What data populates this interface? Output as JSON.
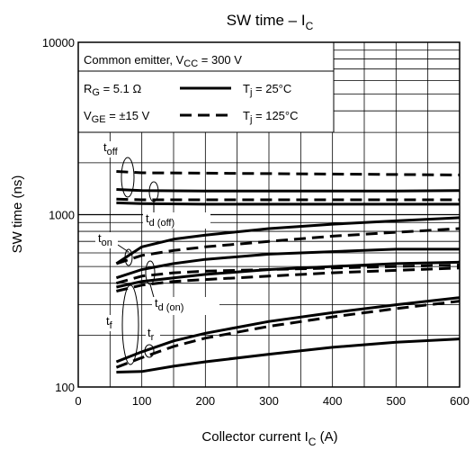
{
  "chart_data": {
    "type": "line",
    "title": {
      "main": "SW time – I",
      "sub": "C"
    },
    "xlabel": {
      "main": "Collector current   I",
      "sub": "C",
      "unit": "   (A)"
    },
    "ylabel": "SW time    (ns)",
    "xlim": [
      0,
      600
    ],
    "ylim": [
      100,
      10000
    ],
    "yscale": "log",
    "grid": true,
    "x_ticks": [
      "0",
      "100",
      "200",
      "300",
      "400",
      "500",
      "600"
    ],
    "y_ticks": [
      "100",
      "1000",
      "10000"
    ],
    "legend": {
      "placement": "top-left",
      "condition": {
        "main": "Common emitter, V",
        "sub": "CC",
        "rest": " = 300 V"
      },
      "rg": {
        "main": "R",
        "sub": "G",
        "rest": " = 5.1 Ω"
      },
      "vge": {
        "main": "V",
        "sub": "GE",
        "rest": " = ±15 V"
      },
      "solid": {
        "main": "T",
        "sub": "j",
        "rest": " = 25°C"
      },
      "dashed": {
        "main": "T",
        "sub": "j",
        "rest": " = 125°C"
      }
    },
    "annotations": {
      "toff": {
        "main": "t",
        "sub": "off"
      },
      "tdoff": {
        "main": "t",
        "sub": "d (off)"
      },
      "ton": {
        "main": "t",
        "sub": "on"
      },
      "tdon": {
        "main": "t",
        "sub": "d (on)"
      },
      "tf": {
        "main": "t",
        "sub": "f"
      },
      "tr": {
        "main": "t",
        "sub": "r"
      }
    },
    "series": [
      {
        "curve": "toff",
        "tj": "25°C",
        "style": "solid",
        "x": [
          60,
          100,
          200,
          300,
          400,
          500,
          600
        ],
        "y": [
          1400,
          1380,
          1370,
          1370,
          1370,
          1370,
          1380
        ]
      },
      {
        "curve": "toff",
        "tj": "125°C",
        "style": "dashed",
        "x": [
          60,
          100,
          200,
          300,
          400,
          500,
          600
        ],
        "y": [
          1780,
          1750,
          1740,
          1730,
          1720,
          1710,
          1700
        ]
      },
      {
        "curve": "td(off)",
        "tj": "25°C",
        "style": "solid",
        "x": [
          60,
          100,
          200,
          300,
          400,
          500,
          600
        ],
        "y": [
          1170,
          1160,
          1150,
          1150,
          1150,
          1150,
          1150
        ]
      },
      {
        "curve": "td(off)",
        "tj": "125°C",
        "style": "dashed",
        "x": [
          60,
          100,
          200,
          300,
          400,
          500,
          600
        ],
        "y": [
          1230,
          1220,
          1220,
          1220,
          1220,
          1220,
          1220
        ]
      },
      {
        "curve": "ton",
        "tj": "25°C",
        "style": "solid",
        "x": [
          60,
          100,
          150,
          200,
          300,
          400,
          500,
          600
        ],
        "y": [
          520,
          650,
          720,
          760,
          830,
          880,
          920,
          960
        ]
      },
      {
        "curve": "ton",
        "tj": "125°C",
        "style": "dashed",
        "x": [
          60,
          100,
          150,
          200,
          300,
          400,
          500,
          600
        ],
        "y": [
          520,
          580,
          620,
          650,
          700,
          750,
          790,
          830
        ]
      },
      {
        "curve": "td(on)",
        "tj": "25°C",
        "style": "solid",
        "x": [
          60,
          100,
          150,
          200,
          300,
          400,
          500,
          600
        ],
        "y": [
          430,
          480,
          520,
          550,
          590,
          610,
          630,
          630
        ]
      },
      {
        "curve": "td(on)",
        "tj": "125°C",
        "style": "dashed",
        "x": [
          60,
          100,
          150,
          200,
          300,
          400,
          500,
          600
        ],
        "y": [
          400,
          440,
          460,
          470,
          480,
          490,
          500,
          510
        ]
      },
      {
        "curve": "td(on)b",
        "tj": "25°C",
        "style": "solid",
        "x": [
          60,
          100,
          150,
          200,
          300,
          400,
          500,
          600
        ],
        "y": [
          380,
          410,
          430,
          450,
          480,
          500,
          520,
          530
        ]
      },
      {
        "curve": "td(on)b",
        "tj": "125°C",
        "style": "dashed",
        "x": [
          60,
          100,
          150,
          200,
          300,
          400,
          500,
          600
        ],
        "y": [
          360,
          390,
          410,
          420,
          440,
          460,
          475,
          490
        ]
      },
      {
        "curve": "tf",
        "tj": "25°C",
        "style": "solid",
        "x": [
          60,
          100,
          150,
          200,
          300,
          400,
          500,
          600
        ],
        "y": [
          140,
          160,
          185,
          205,
          240,
          270,
          300,
          330
        ]
      },
      {
        "curve": "tf",
        "tj": "125°C",
        "style": "dashed",
        "x": [
          60,
          100,
          150,
          200,
          300,
          400,
          500,
          600
        ],
        "y": [
          130,
          148,
          172,
          192,
          225,
          255,
          285,
          315
        ]
      },
      {
        "curve": "tr",
        "tj": "25°C",
        "style": "solid",
        "x": [
          60,
          100,
          150,
          200,
          300,
          400,
          500,
          600
        ],
        "y": [
          122,
          123,
          132,
          140,
          155,
          170,
          182,
          190
        ]
      }
    ]
  }
}
